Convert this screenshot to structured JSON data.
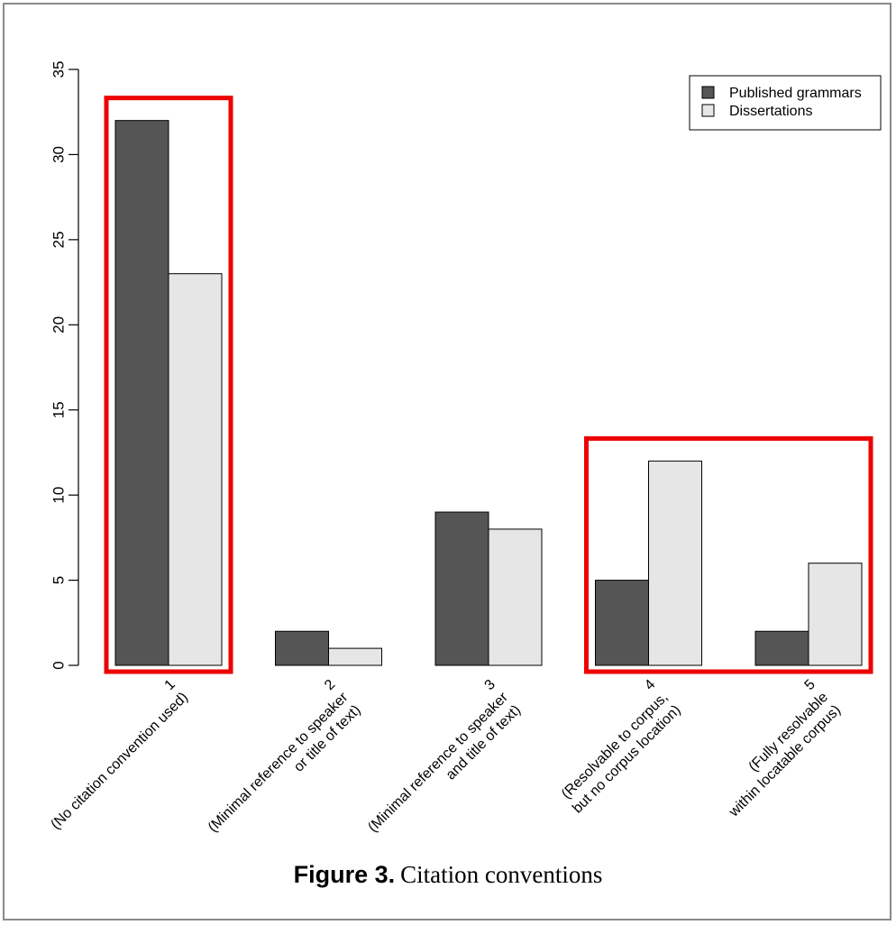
{
  "caption": {
    "label": "Figure 3.",
    "title": "Citation conventions"
  },
  "chart_data": {
    "type": "bar",
    "title": "",
    "xlabel": "",
    "ylabel": "",
    "ylim": [
      0,
      35
    ],
    "yticks": [
      0,
      5,
      10,
      15,
      20,
      25,
      30,
      35
    ],
    "grid": false,
    "legend_position": "top-right",
    "categories": [
      [
        "1",
        "(No citation convention used)"
      ],
      [
        "2",
        "(Minimal reference to speaker",
        "or title of text)"
      ],
      [
        "3",
        "(Minimal reference to speaker",
        "and title of text)"
      ],
      [
        "4",
        "(Resolvable to corpus,",
        "but no corpus location)"
      ],
      [
        "5",
        "(Fully resolvable",
        "within locatable corpus)"
      ]
    ],
    "series": [
      {
        "name": "Published grammars",
        "color": "#555555",
        "values": [
          32,
          2,
          9,
          5,
          2
        ]
      },
      {
        "name": "Dissertations",
        "color": "#e6e6e6",
        "values": [
          23,
          1,
          8,
          12,
          6
        ]
      }
    ],
    "highlight_groups": [
      [
        1
      ],
      [
        4,
        5
      ]
    ],
    "highlight_color": "#ee0000"
  }
}
